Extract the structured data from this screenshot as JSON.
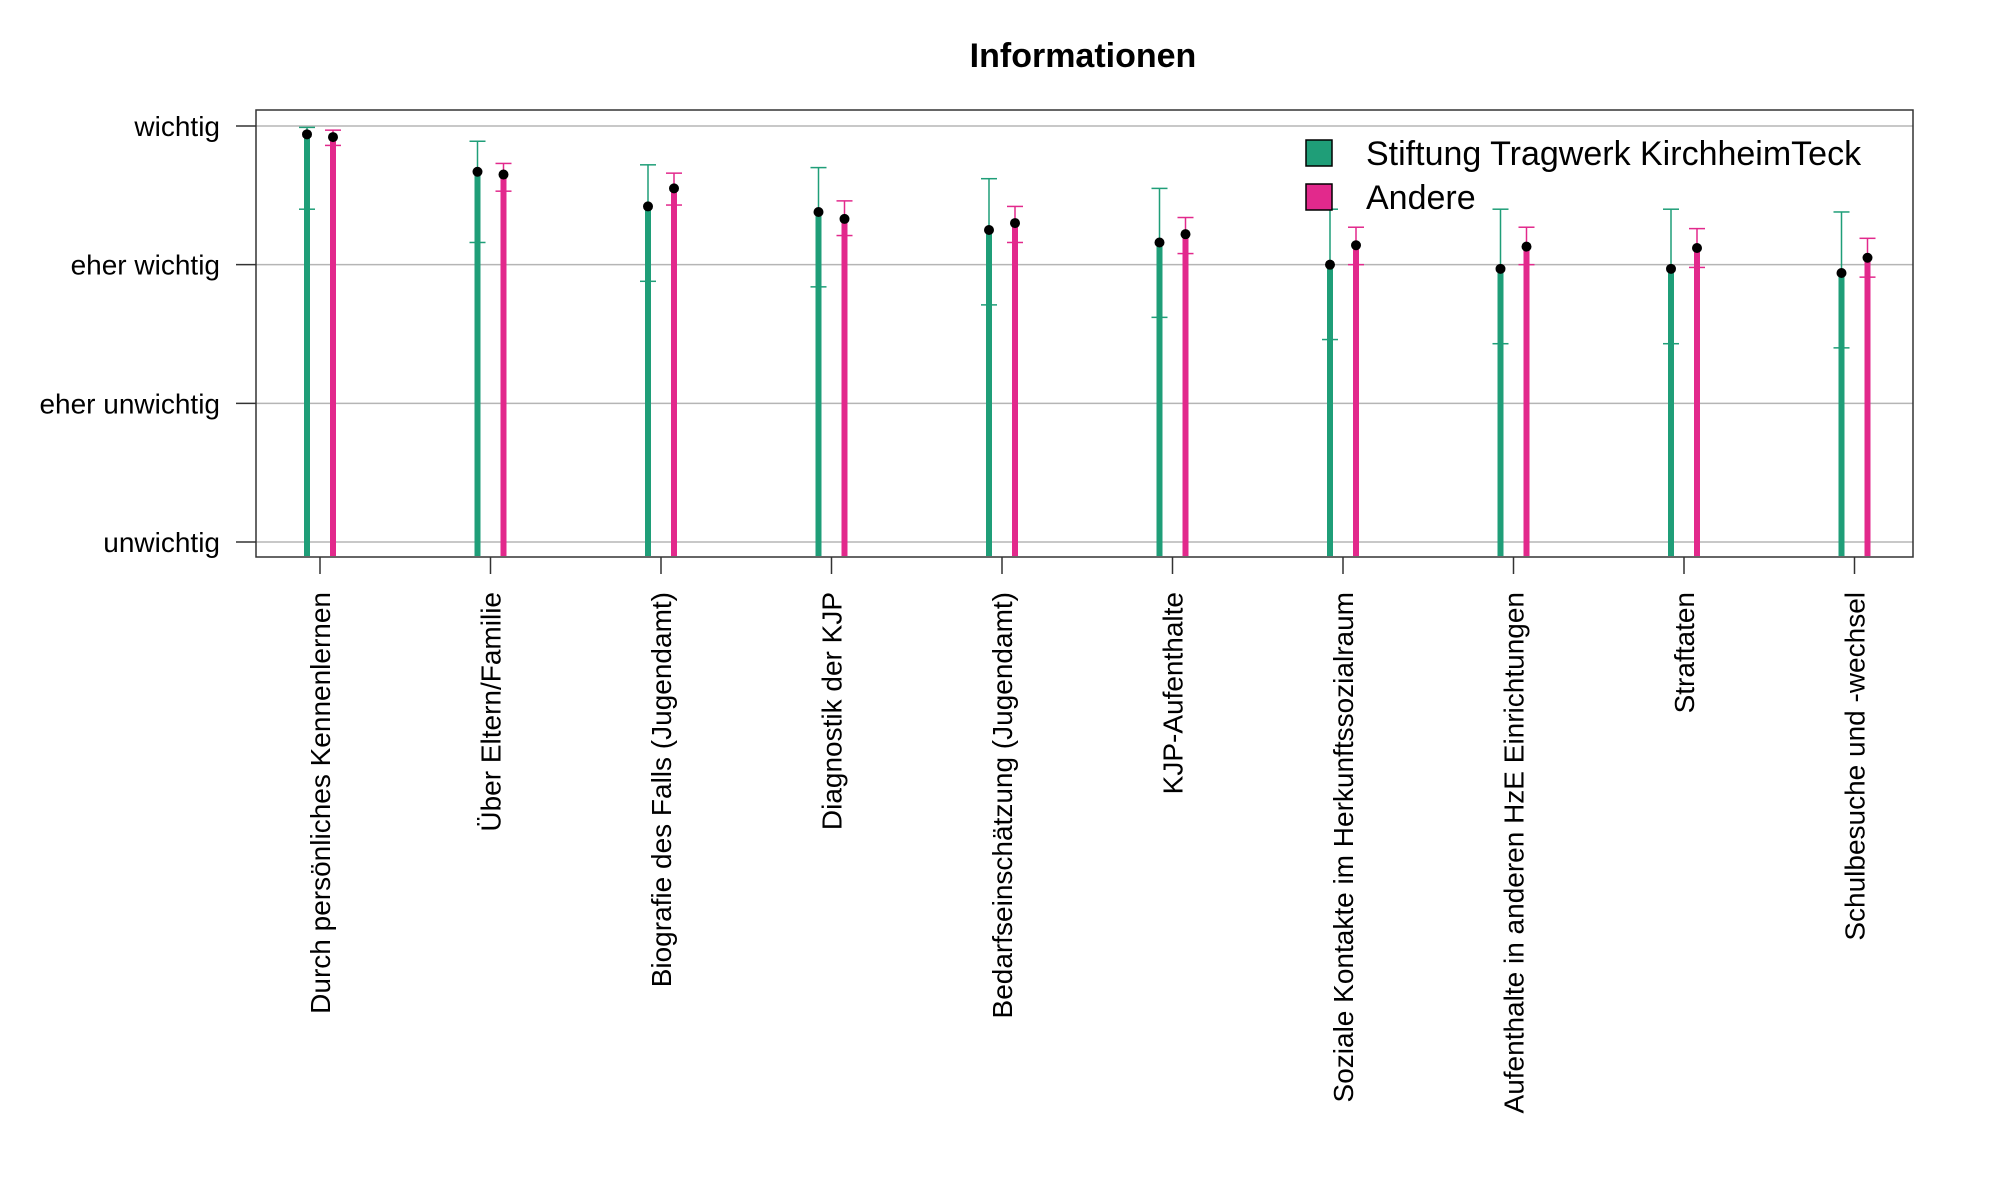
{
  "chart_data": {
    "type": "bar",
    "title": "Informationen",
    "xlabel": "",
    "ylabel": "",
    "ylim": [
      1,
      4
    ],
    "yticks": [
      {
        "value": 1,
        "label": "unwichtig"
      },
      {
        "value": 2,
        "label": "eher unwichtig"
      },
      {
        "value": 3,
        "label": "eher wichtig"
      },
      {
        "value": 4,
        "label": "wichtig"
      }
    ],
    "grid": true,
    "legend_position": "top-right",
    "categories": [
      "Durch persönliches Kennenlernen",
      "Über Eltern/Familie",
      "Biografie des Falls (Jugendamt)",
      "Diagnostik der KJP",
      "Bedarfseinschätzung (Jugendamt)",
      "KJP-Aufenthalte",
      "Soziale Kontakte im Herkunftssozialraum",
      "Aufenthalte in anderen HzE Einrichtungen",
      "Straftaten",
      "Schulbesuche und -wechsel"
    ],
    "series": [
      {
        "name": "Stiftung Tragwerk KirchheimTeck",
        "color": "#1f9e78",
        "values": [
          3.94,
          3.67,
          3.42,
          3.38,
          3.25,
          3.16,
          3.0,
          2.97,
          2.97,
          2.94
        ],
        "err_low": [
          3.4,
          3.16,
          2.88,
          2.84,
          2.71,
          2.62,
          2.46,
          2.43,
          2.43,
          2.4
        ],
        "err_high": [
          3.99,
          3.89,
          3.72,
          3.7,
          3.62,
          3.55,
          3.4,
          3.4,
          3.4,
          3.38
        ]
      },
      {
        "name": "Andere",
        "color": "#e2298c",
        "values": [
          3.92,
          3.65,
          3.55,
          3.33,
          3.3,
          3.22,
          3.14,
          3.13,
          3.12,
          3.05
        ],
        "err_low": [
          3.86,
          3.53,
          3.43,
          3.21,
          3.16,
          3.08,
          3.0,
          3.0,
          2.98,
          2.91
        ],
        "err_high": [
          3.97,
          3.73,
          3.66,
          3.46,
          3.42,
          3.34,
          3.27,
          3.27,
          3.26,
          3.19
        ]
      }
    ]
  }
}
